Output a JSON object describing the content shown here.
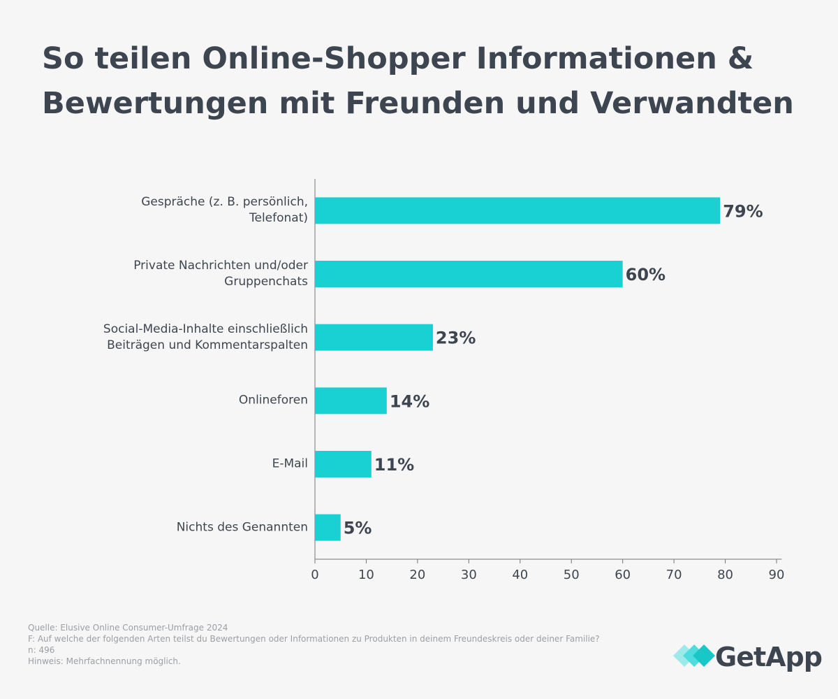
{
  "chart_data": {
    "type": "barh",
    "title": "So teilen Online-Shopper Informationen & Bewertungen mit Freunden und Verwandten",
    "categories": [
      "Gespräche (z. B. persönlich,\nTelefonat)",
      "Private Nachrichten und/oder\nGruppenchats",
      "Social-Media-Inhalte einschließlich\nBeiträgen und Kommentarspalten",
      "Onlineforen",
      "E-Mail",
      "Nichts des Genannten"
    ],
    "values": [
      79,
      60,
      23,
      14,
      11,
      5
    ],
    "value_labels": [
      "79%",
      "60%",
      "23%",
      "14%",
      "11%",
      "5%"
    ],
    "color": "#19d0d2",
    "xlim": [
      0,
      91
    ],
    "xticks": [
      0,
      10,
      20,
      30,
      40,
      50,
      60,
      70,
      80,
      90
    ],
    "grid": false,
    "notes": [
      "Quelle: Elusive Online Consumer-Umfrage 2024",
      "F: Auf welche der folgenden Arten teilst du Bewertungen oder Informationen zu Produkten in deinem Freundeskreis oder deiner Familie?",
      "n: 496",
      "Hinweis: Mehrfachnennung möglich."
    ],
    "brand": "GetApp"
  }
}
